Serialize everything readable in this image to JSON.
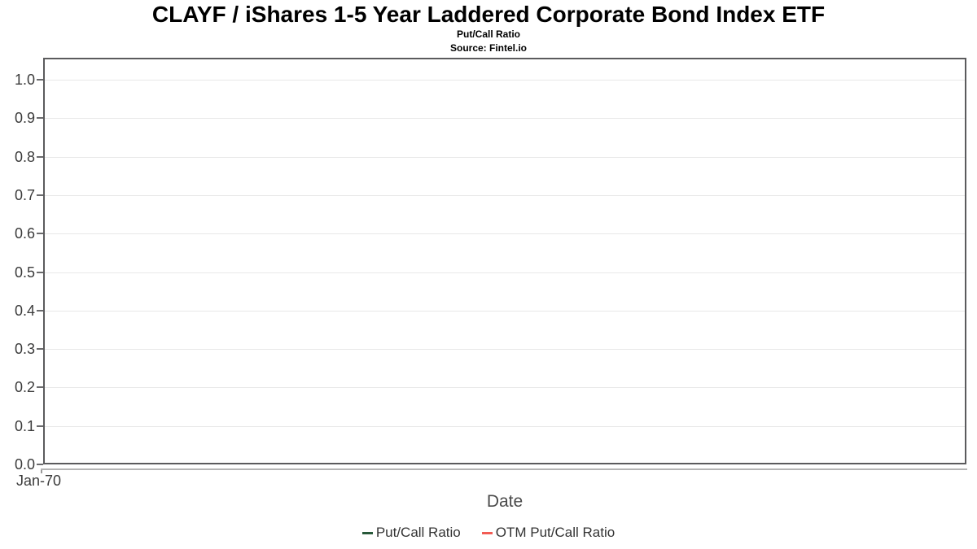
{
  "header": {
    "title": "CLAYF / iShares 1-5 Year Laddered Corporate Bond Index ETF",
    "subtitle": "Put/Call Ratio",
    "source": "Source: Fintel.io"
  },
  "axes": {
    "x_label": "Date",
    "x_tick_labels": [
      "Jan-70"
    ],
    "y_tick_labels": [
      "1.0",
      "0.9",
      "0.8",
      "0.7",
      "0.6",
      "0.5",
      "0.4",
      "0.3",
      "0.2",
      "0.1",
      "0.0"
    ]
  },
  "legend": [
    {
      "label": "Put/Call Ratio",
      "color": "#28593a"
    },
    {
      "label": "OTM Put/Call Ratio",
      "color": "#f25c54"
    }
  ],
  "colors": {
    "plot_border": "#5b5b5d",
    "gridline": "#e8e8e8",
    "axis_line": "#b4b4b4",
    "tick_text": "#3b3b3b",
    "background": "#ffffff"
  },
  "chart_data": {
    "type": "line",
    "title": "CLAYF / iShares 1-5 Year Laddered Corporate Bond Index ETF",
    "subtitle": "Put/Call Ratio",
    "source": "Source: Fintel.io",
    "xlabel": "Date",
    "ylabel": "",
    "x": [
      "Jan-70"
    ],
    "ylim": [
      0.0,
      1.057
    ],
    "y_ticks": [
      0.0,
      0.1,
      0.2,
      0.3,
      0.4,
      0.5,
      0.6,
      0.7,
      0.8,
      0.9,
      1.0
    ],
    "grid": "horizontal",
    "legend_position": "bottom",
    "series": [
      {
        "name": "Put/Call Ratio",
        "color": "#28593a",
        "values": []
      },
      {
        "name": "OTM Put/Call Ratio",
        "color": "#f25c54",
        "values": []
      }
    ]
  }
}
